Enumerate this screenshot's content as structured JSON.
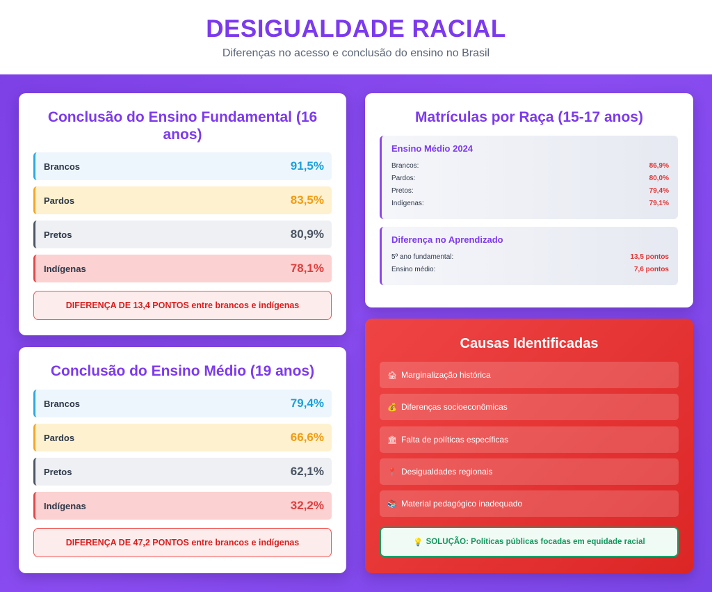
{
  "header": {
    "title": "DESIGUALDADE RACIAL",
    "subtitle": "Diferenças no acesso e conclusão do ensino no Brasil"
  },
  "fundamental": {
    "title": "Conclusão do Ensino Fundamental (16 anos)",
    "rows": [
      {
        "label": "Brancos",
        "value": "91,5%"
      },
      {
        "label": "Pardos",
        "value": "83,5%"
      },
      {
        "label": "Pretos",
        "value": "80,9%"
      },
      {
        "label": "Indígenas",
        "value": "78,1%"
      }
    ],
    "difference": "DIFERENÇA DE 13,4 PONTOS entre brancos e indígenas"
  },
  "medio": {
    "title": "Conclusão do Ensino Médio (19 anos)",
    "rows": [
      {
        "label": "Brancos",
        "value": "79,4%"
      },
      {
        "label": "Pardos",
        "value": "66,6%"
      },
      {
        "label": "Pretos",
        "value": "62,1%"
      },
      {
        "label": "Indígenas",
        "value": "32,2%"
      }
    ],
    "difference": "DIFERENÇA DE 47,2 PONTOS entre brancos e indígenas"
  },
  "matriculas": {
    "title": "Matrículas por Raça (15-17 anos)",
    "ensino_medio": {
      "heading": "Ensino Médio 2024",
      "lines": [
        {
          "label": "Brancos:",
          "value": "86,9%"
        },
        {
          "label": "Pardos:",
          "value": "80,0%"
        },
        {
          "label": "Pretos:",
          "value": "79,4%"
        },
        {
          "label": "Indígenas:",
          "value": "79,1%"
        }
      ]
    },
    "aprendizado": {
      "heading": "Diferença no Aprendizado",
      "lines": [
        {
          "label": "5º ano fundamental:",
          "value": "13,5 pontos"
        },
        {
          "label": "Ensino médio:",
          "value": "7,6 pontos"
        }
      ]
    }
  },
  "causes": {
    "title": "Causas Identificadas",
    "items": [
      {
        "icon": "house-icon",
        "glyph": "🏚",
        "label": "Marginalização histórica"
      },
      {
        "icon": "money-bag-icon",
        "glyph": "💰",
        "label": "Diferenças socioeconômicas"
      },
      {
        "icon": "government-building-icon",
        "glyph": "🏛",
        "label": "Falta de políticas específicas"
      },
      {
        "icon": "map-pin-icon",
        "glyph": "📍",
        "label": "Desigualdades regionais"
      },
      {
        "icon": "books-icon",
        "glyph": "📚",
        "label": "Material pedagógico inadequado"
      }
    ],
    "solution": {
      "icon": "lightbulb-icon",
      "glyph": "💡",
      "label": "SOLUÇÃO: Políticas públicas focadas em equidade racial"
    }
  }
}
